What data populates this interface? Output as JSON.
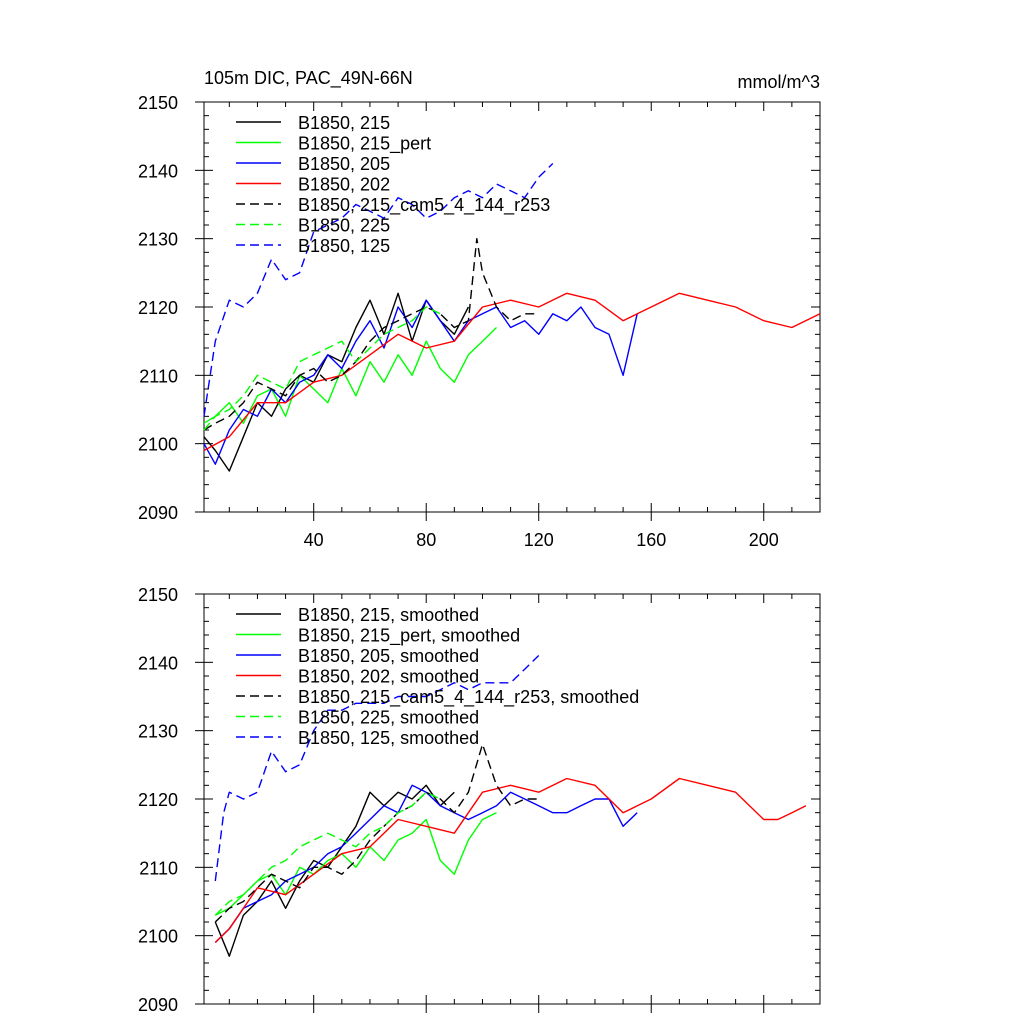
{
  "chart_data": [
    {
      "type": "line",
      "title_left": "105m DIC, PAC_49N-66N",
      "title_right": "mmol/m^3",
      "xlabel": "",
      "ylabel": "",
      "xlim": [
        1,
        220
      ],
      "ylim": [
        2090,
        2150
      ],
      "xticks": [
        40,
        80,
        120,
        160,
        200
      ],
      "yticks": [
        2090,
        2100,
        2110,
        2120,
        2130,
        2140,
        2150
      ],
      "legend_position": "top-left",
      "series": [
        {
          "name": "B1850, 215",
          "color": "#000000",
          "dash": "solid",
          "x": [
            1,
            5,
            10,
            15,
            20,
            25,
            30,
            35,
            40,
            45,
            50,
            55,
            60,
            65,
            70,
            75,
            80,
            85,
            90,
            95
          ],
          "values": [
            2101,
            2099,
            2096,
            2101,
            2106,
            2104,
            2108,
            2110,
            2109,
            2113,
            2112,
            2117,
            2121,
            2116,
            2122,
            2115,
            2121,
            2118,
            2116,
            2120
          ]
        },
        {
          "name": "B1850, 215_pert",
          "color": "#00ff00",
          "dash": "solid",
          "x": [
            1,
            5,
            10,
            15,
            20,
            25,
            30,
            35,
            40,
            45,
            50,
            55,
            60,
            65,
            70,
            75,
            80,
            85,
            90,
            95,
            100,
            105
          ],
          "values": [
            2103,
            2104,
            2106,
            2103,
            2107,
            2108,
            2104,
            2110,
            2108,
            2106,
            2111,
            2107,
            2112,
            2109,
            2113,
            2110,
            2115,
            2111,
            2109,
            2113,
            2115,
            2117
          ]
        },
        {
          "name": "B1850, 205",
          "color": "#0000ff",
          "dash": "solid",
          "x": [
            1,
            5,
            10,
            15,
            20,
            25,
            30,
            35,
            40,
            45,
            50,
            55,
            60,
            65,
            70,
            75,
            80,
            85,
            90,
            95,
            100,
            105,
            110,
            115,
            120,
            125,
            130,
            135,
            140,
            145,
            150,
            155
          ],
          "values": [
            2100,
            2097,
            2102,
            2105,
            2104,
            2108,
            2106,
            2109,
            2110,
            2113,
            2111,
            2115,
            2118,
            2114,
            2120,
            2117,
            2121,
            2118,
            2115,
            2118,
            2119,
            2120,
            2117,
            2118,
            2116,
            2119,
            2118,
            2120,
            2117,
            2116,
            2110,
            2119
          ]
        },
        {
          "name": "B1850, 202",
          "color": "#ff0000",
          "dash": "solid",
          "x": [
            1,
            10,
            20,
            30,
            40,
            50,
            60,
            70,
            80,
            90,
            100,
            110,
            120,
            130,
            140,
            150,
            160,
            170,
            180,
            190,
            200,
            210,
            220
          ],
          "values": [
            2099,
            2101,
            2106,
            2106,
            2109,
            2110,
            2113,
            2116,
            2114,
            2115,
            2120,
            2121,
            2120,
            2122,
            2121,
            2118,
            2120,
            2122,
            2121,
            2120,
            2118,
            2117,
            2119
          ]
        },
        {
          "name": "B1850, 215_cam5_4_144_r253",
          "color": "#000000",
          "dash": "dashed",
          "x": [
            1,
            5,
            10,
            15,
            20,
            25,
            30,
            35,
            40,
            45,
            50,
            55,
            60,
            65,
            70,
            75,
            80,
            85,
            90,
            95,
            98,
            100,
            105,
            110,
            115,
            120
          ],
          "values": [
            2102,
            2103,
            2104,
            2106,
            2109,
            2108,
            2107,
            2110,
            2111,
            2109,
            2110,
            2112,
            2115,
            2117,
            2118,
            2119,
            2120,
            2119,
            2117,
            2118,
            2130,
            2125,
            2120,
            2118,
            2119,
            2119
          ]
        },
        {
          "name": "B1850, 225",
          "color": "#00ff00",
          "dash": "dashed",
          "x": [
            1,
            5,
            10,
            15,
            20,
            25,
            30,
            35,
            40,
            45,
            50,
            55,
            60,
            65,
            70,
            75,
            80,
            85
          ],
          "values": [
            2102,
            2104,
            2105,
            2107,
            2110,
            2109,
            2108,
            2112,
            2113,
            2114,
            2115,
            2112,
            2114,
            2116,
            2117,
            2118,
            2120,
            2119
          ]
        },
        {
          "name": "B1850, 125",
          "color": "#0000ff",
          "dash": "dashed",
          "x": [
            1,
            5,
            10,
            15,
            20,
            25,
            30,
            35,
            40,
            45,
            50,
            55,
            60,
            65,
            70,
            75,
            80,
            85,
            90,
            95,
            100,
            105,
            110,
            115,
            120,
            125
          ],
          "values": [
            2104,
            2115,
            2121,
            2120,
            2122,
            2127,
            2124,
            2125,
            2131,
            2132,
            2133,
            2135,
            2134,
            2133,
            2136,
            2135,
            2133,
            2134,
            2136,
            2137,
            2136,
            2138,
            2137,
            2136,
            2139,
            2141
          ]
        }
      ]
    },
    {
      "type": "line",
      "xlabel": "",
      "ylabel": "",
      "xlim": [
        1,
        220
      ],
      "ylim": [
        2090,
        2150
      ],
      "xticks": [
        40,
        80,
        120,
        160,
        200
      ],
      "yticks": [
        2090,
        2100,
        2110,
        2120,
        2130,
        2140,
        2150
      ],
      "legend_position": "top-left",
      "series": [
        {
          "name": "B1850, 215, smoothed",
          "color": "#000000",
          "dash": "solid",
          "x": [
            5,
            10,
            15,
            20,
            25,
            30,
            35,
            40,
            45,
            50,
            55,
            60,
            65,
            70,
            75,
            80,
            85,
            90
          ],
          "values": [
            2102,
            2097,
            2103,
            2105,
            2108,
            2104,
            2108,
            2111,
            2110,
            2113,
            2116,
            2121,
            2119,
            2121,
            2120,
            2122,
            2119,
            2121
          ]
        },
        {
          "name": "B1850, 215_pert, smoothed",
          "color": "#00ff00",
          "dash": "solid",
          "x": [
            5,
            10,
            15,
            20,
            25,
            30,
            35,
            40,
            45,
            50,
            55,
            60,
            65,
            70,
            75,
            80,
            85,
            90,
            95,
            100,
            105
          ],
          "values": [
            2103,
            2104,
            2106,
            2108,
            2109,
            2106,
            2110,
            2109,
            2111,
            2112,
            2110,
            2113,
            2111,
            2114,
            2115,
            2117,
            2111,
            2109,
            2114,
            2117,
            2118
          ]
        },
        {
          "name": "B1850, 205, smoothed",
          "color": "#0000ff",
          "dash": "solid",
          "x": [
            5,
            10,
            15,
            20,
            25,
            30,
            35,
            40,
            45,
            50,
            55,
            60,
            65,
            70,
            75,
            80,
            85,
            90,
            95,
            100,
            105,
            110,
            115,
            120,
            125,
            130,
            135,
            140,
            145,
            150,
            155
          ],
          "values": [
            2099,
            2101,
            2104,
            2105,
            2106,
            2108,
            2109,
            2110,
            2112,
            2113,
            2115,
            2117,
            2119,
            2118,
            2122,
            2121,
            2119,
            2118,
            2117,
            2118,
            2119,
            2121,
            2120,
            2119,
            2118,
            2118,
            2119,
            2120,
            2120,
            2116,
            2118
          ]
        },
        {
          "name": "B1850, 202, smoothed",
          "color": "#ff0000",
          "dash": "solid",
          "x": [
            5,
            10,
            20,
            30,
            40,
            50,
            60,
            70,
            80,
            90,
            100,
            110,
            120,
            130,
            140,
            150,
            160,
            170,
            180,
            190,
            200,
            205,
            210,
            215
          ],
          "values": [
            2099,
            2101,
            2107,
            2106,
            2109,
            2112,
            2113,
            2117,
            2116,
            2115,
            2121,
            2122,
            2121,
            2123,
            2122,
            2118,
            2120,
            2123,
            2122,
            2121,
            2117,
            2117,
            2118,
            2119
          ]
        },
        {
          "name": "B1850, 215_cam5_4_144_r253, smoothed",
          "color": "#000000",
          "dash": "dashed",
          "x": [
            5,
            10,
            15,
            20,
            25,
            30,
            35,
            40,
            45,
            50,
            55,
            60,
            65,
            70,
            75,
            80,
            85,
            90,
            95,
            100,
            105,
            110,
            115,
            120
          ],
          "values": [
            2102,
            2104,
            2105,
            2107,
            2109,
            2108,
            2107,
            2110,
            2110,
            2109,
            2111,
            2114,
            2116,
            2118,
            2119,
            2121,
            2120,
            2118,
            2121,
            2128,
            2122,
            2119,
            2120,
            2120
          ]
        },
        {
          "name": "B1850, 225, smoothed",
          "color": "#00ff00",
          "dash": "dashed",
          "x": [
            5,
            10,
            15,
            20,
            25,
            30,
            35,
            40,
            45,
            50,
            55,
            60,
            65,
            70,
            75,
            80,
            85
          ],
          "values": [
            2103,
            2105,
            2106,
            2108,
            2110,
            2111,
            2113,
            2114,
            2115,
            2114,
            2113,
            2115,
            2116,
            2118,
            2119,
            2121,
            2120
          ]
        },
        {
          "name": "B1850, 125, smoothed",
          "color": "#0000ff",
          "dash": "dashed",
          "x": [
            5,
            8,
            10,
            15,
            20,
            25,
            30,
            35,
            40,
            45,
            50,
            55,
            60,
            65,
            70,
            75,
            80,
            85,
            90,
            95,
            100,
            105,
            110,
            115,
            120
          ],
          "values": [
            2108,
            2118,
            2121,
            2120,
            2121,
            2127,
            2124,
            2125,
            2130,
            2133,
            2133,
            2134,
            2134,
            2134,
            2135,
            2135,
            2135,
            2136,
            2137,
            2136,
            2137,
            2137,
            2137,
            2139,
            2141
          ]
        }
      ]
    }
  ]
}
